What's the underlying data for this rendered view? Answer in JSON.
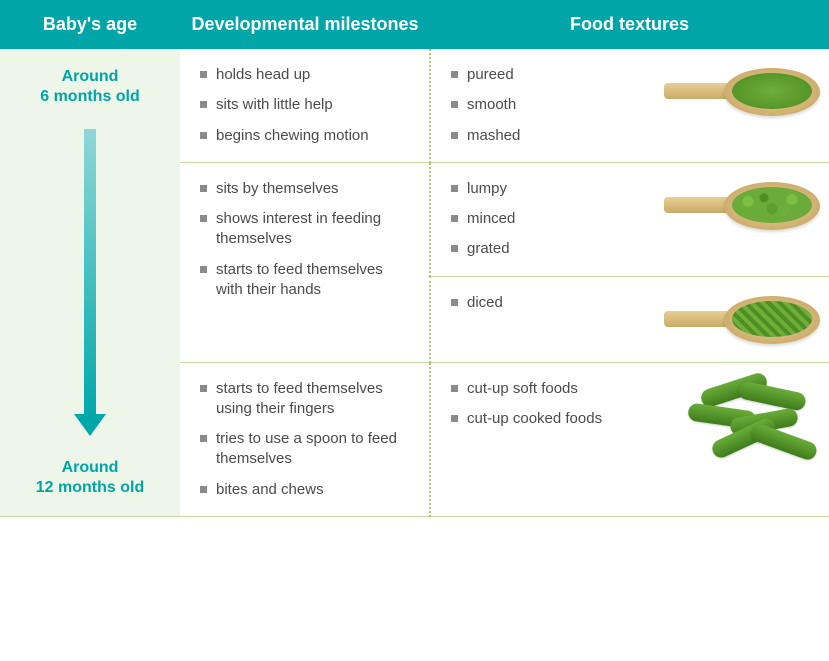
{
  "header": {
    "age": "Baby's age",
    "milestones": "Developmental milestones",
    "textures": "Food textures",
    "bg_color": "#00a5a8",
    "text_color": "#ffffff"
  },
  "age_labels": {
    "start": "Around\n6 months old",
    "end": "Around\n12 months old",
    "color": "#00a5a8"
  },
  "rows": [
    {
      "milestones": [
        "holds head up",
        "sits with little help",
        "begins chewing motion"
      ],
      "textures": [
        "pureed",
        "smooth",
        "mashed"
      ],
      "image": "spoon-pureed"
    },
    {
      "milestones": [
        "sits by themselves",
        "shows interest in feeding themselves",
        "starts to feed themselves with their hands"
      ],
      "textures": [
        "lumpy",
        "minced",
        "grated"
      ],
      "image": "spoon-lumpy"
    },
    {
      "milestones": [],
      "textures": [
        "diced"
      ],
      "image": "spoon-diced"
    },
    {
      "milestones": [
        "starts to feed themselves using their fingers",
        "tries to use a spoon to feed themselves",
        "bites and chews"
      ],
      "textures": [
        "cut-up soft foods",
        "cut-up cooked foods"
      ],
      "image": "green-beans"
    }
  ],
  "style": {
    "bullet_color": "#8a8a8a",
    "body_text_color": "#4b4b4b",
    "age_bg": "#eef6e9",
    "divider_color": "#c7dca0",
    "dotted_divider_color": "#a6c96a",
    "arrow_gradient": [
      "#8fd7d8",
      "#00a8aa"
    ]
  }
}
